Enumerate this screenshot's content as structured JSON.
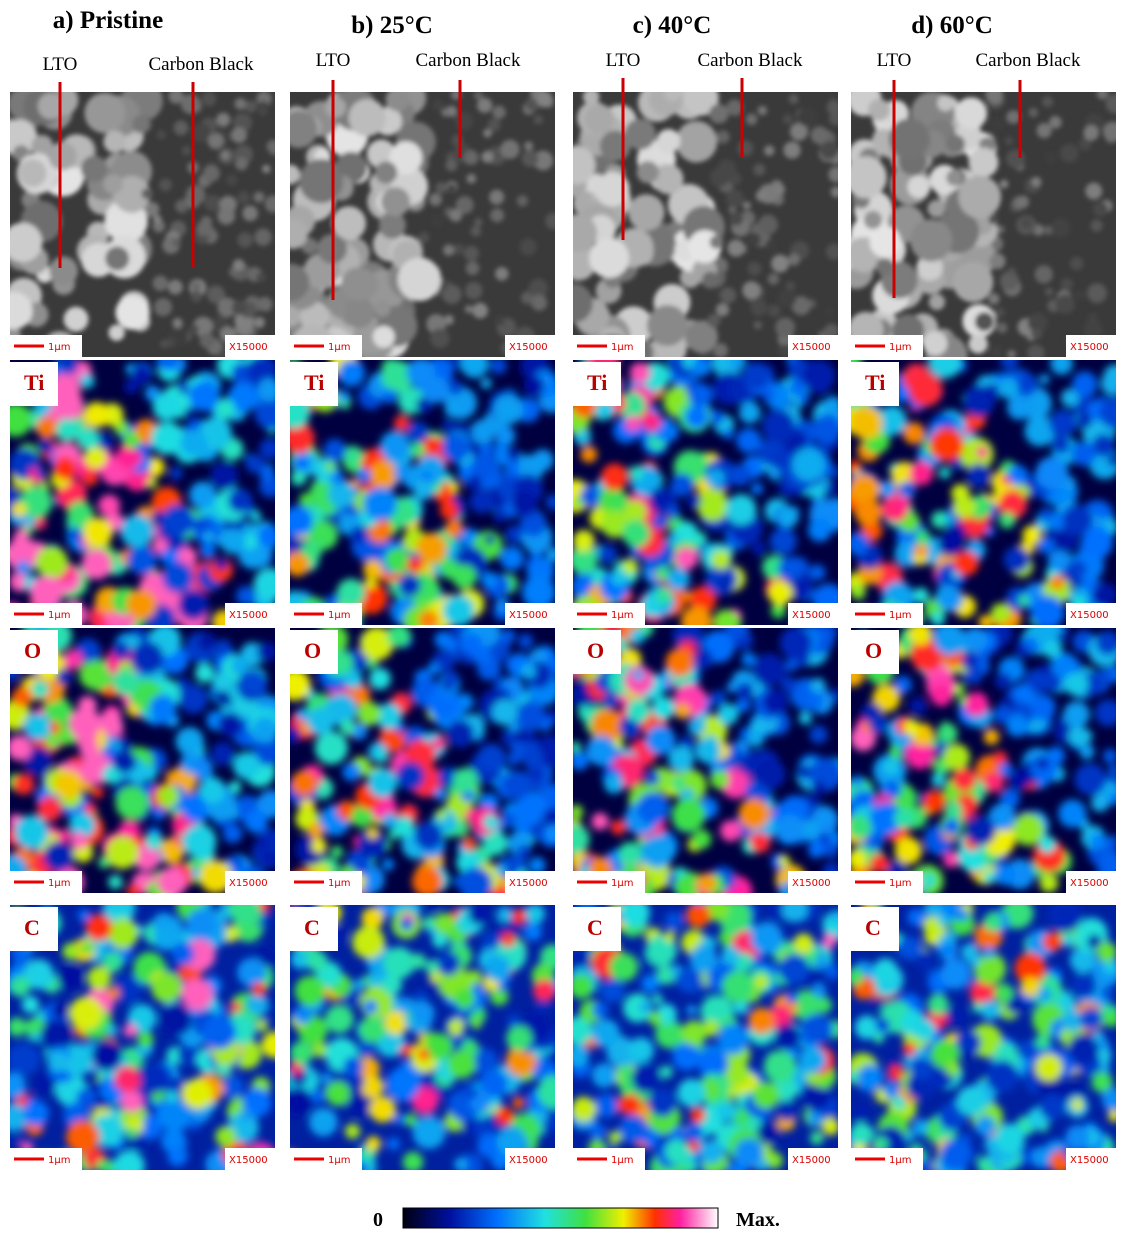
{
  "columns": [
    {
      "title": "a) Pristine",
      "labels": [
        "LTO",
        "Carbon Black"
      ]
    },
    {
      "title": "b) 25°C",
      "labels": [
        "LTO",
        "Carbon Black"
      ]
    },
    {
      "title": "c) 40°C",
      "labels": [
        "LTO",
        "Carbon Black"
      ]
    },
    {
      "title": "d) 60°C",
      "labels": [
        "LTO",
        "Carbon Black"
      ]
    }
  ],
  "map_rows": [
    {
      "element": "Ti"
    },
    {
      "element": "O"
    },
    {
      "element": "C"
    }
  ],
  "scale_bar": "1µm",
  "magnification": "X15000",
  "colorbar": {
    "min_label": "0",
    "max_label": "Max."
  }
}
